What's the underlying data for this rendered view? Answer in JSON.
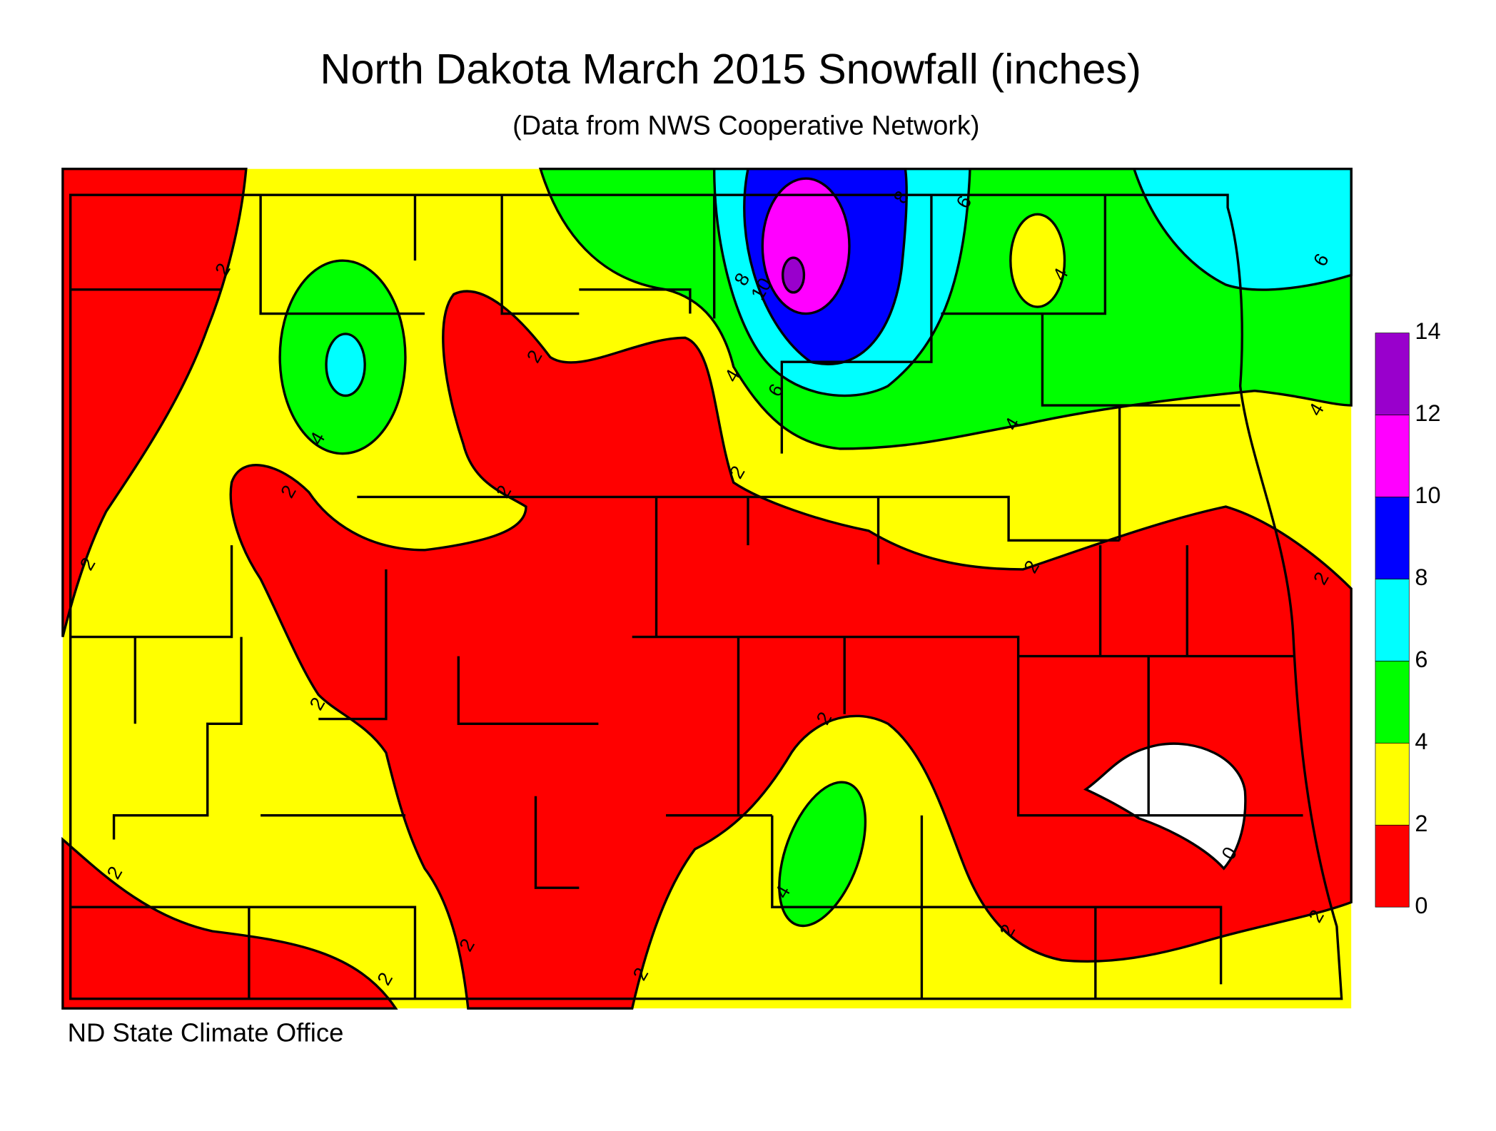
{
  "title": "North Dakota March 2015 Snowfall (inches)",
  "subtitle": "(Data from NWS Cooperative Network)",
  "footer": "ND State Climate Office",
  "legend": {
    "ticks": [
      0,
      2,
      4,
      6,
      8,
      10,
      12,
      14
    ],
    "colors": [
      "#ff0000",
      "#ffff00",
      "#00ff00",
      "#00ffff",
      "#0000ff",
      "#ff00ff",
      "#9900cc"
    ]
  },
  "contour_labels": [
    2,
    2,
    2,
    2,
    2,
    2,
    2,
    2,
    2,
    2,
    2,
    2,
    2,
    2,
    2,
    2,
    4,
    4,
    4,
    4,
    4,
    4,
    6,
    6,
    6,
    8,
    8,
    10,
    0
  ]
}
